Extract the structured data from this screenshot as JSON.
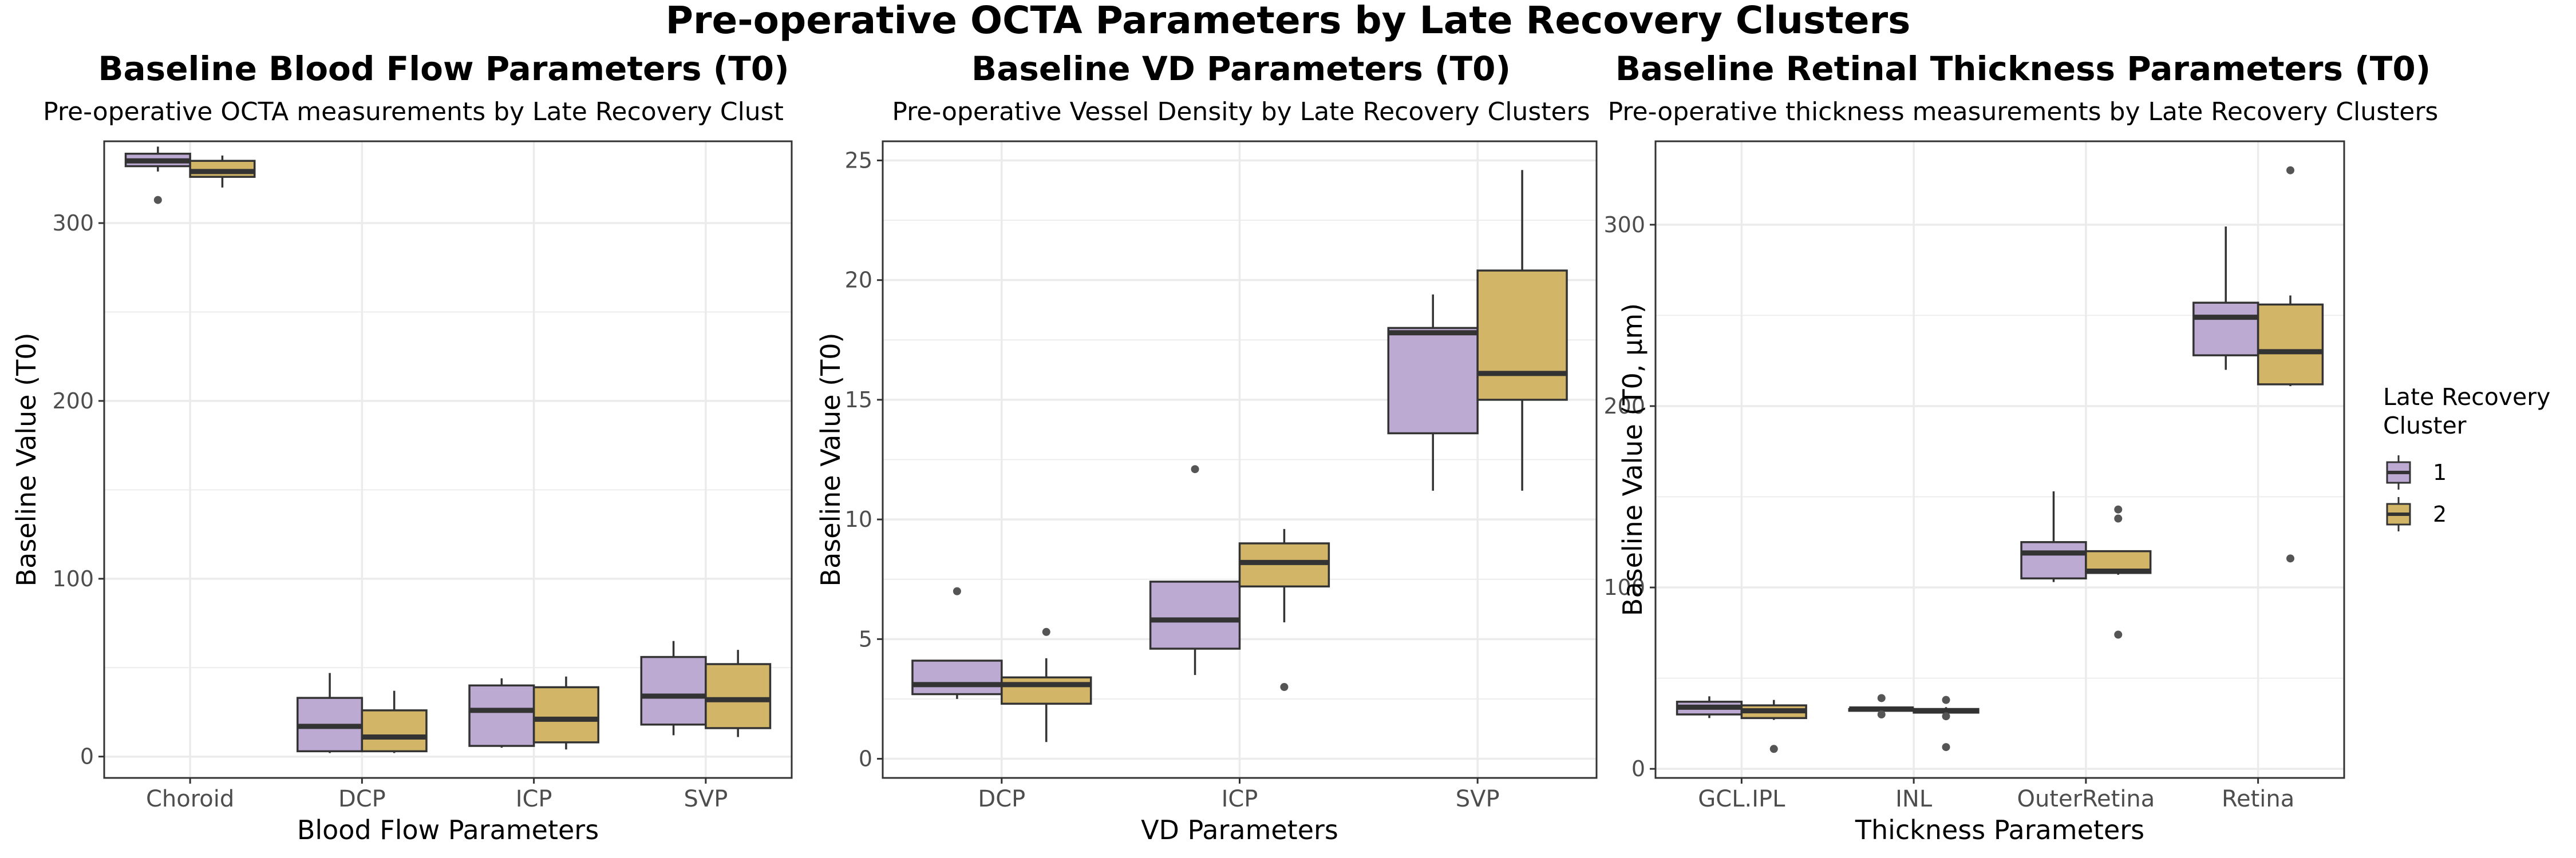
{
  "figure_title": "Pre-operative OCTA Parameters by Late Recovery Clusters",
  "legend": {
    "title_line1": "Late Recovery",
    "title_line2": "Cluster",
    "items": [
      {
        "label": "1",
        "color": "#bcaad3"
      },
      {
        "label": "2",
        "color": "#d2b566"
      }
    ]
  },
  "colors": {
    "cluster1": "#bcaad3",
    "cluster2": "#d2b566",
    "box_line": "#333333",
    "grid": "#ebebeb",
    "panel_border": "#333333"
  },
  "chart_data": [
    {
      "type": "boxplot",
      "title": "Baseline Blood Flow Parameters (T0)",
      "subtitle": "Pre-operative OCTA measurements by Late Recovery Clust",
      "xlabel": "Blood Flow Parameters",
      "ylabel": "Baseline Value (T0)",
      "ylim": [
        -12,
        346
      ],
      "yticks": [
        0,
        100,
        200,
        300
      ],
      "categories": [
        "Choroid",
        "DCP",
        "ICP",
        "SVP"
      ],
      "series": [
        {
          "name": "1",
          "boxes": [
            {
              "min": 329,
              "q1": 332,
              "median": 335,
              "q3": 339,
              "max": 343,
              "outliers": [
                313
              ]
            },
            {
              "min": 2,
              "q1": 3,
              "median": 17,
              "q3": 33,
              "max": 47,
              "outliers": []
            },
            {
              "min": 5,
              "q1": 6,
              "median": 26,
              "q3": 40,
              "max": 44,
              "outliers": []
            },
            {
              "min": 12,
              "q1": 18,
              "median": 34,
              "q3": 56,
              "max": 65,
              "outliers": []
            }
          ]
        },
        {
          "name": "2",
          "boxes": [
            {
              "min": 320,
              "q1": 326,
              "median": 329,
              "q3": 335,
              "max": 338,
              "outliers": []
            },
            {
              "min": 2,
              "q1": 3,
              "median": 11,
              "q3": 26,
              "max": 37,
              "outliers": []
            },
            {
              "min": 4,
              "q1": 8,
              "median": 21,
              "q3": 39,
              "max": 45,
              "outliers": []
            },
            {
              "min": 11,
              "q1": 16,
              "median": 32,
              "q3": 52,
              "max": 60,
              "outliers": []
            }
          ]
        }
      ]
    },
    {
      "type": "boxplot",
      "title": "Baseline VD Parameters (T0)",
      "subtitle": "Pre-operative Vessel Density by Late Recovery Clusters",
      "xlabel": "VD Parameters",
      "ylabel": "Baseline Value (T0)",
      "ylim": [
        -0.8,
        25.8
      ],
      "yticks": [
        0,
        5,
        10,
        15,
        20,
        25
      ],
      "categories": [
        "DCP",
        "ICP",
        "SVP"
      ],
      "series": [
        {
          "name": "1",
          "boxes": [
            {
              "min": 2.5,
              "q1": 2.7,
              "median": 3.1,
              "q3": 4.1,
              "max": 4.1,
              "outliers": [
                7.0
              ]
            },
            {
              "min": 3.5,
              "q1": 4.6,
              "median": 5.8,
              "q3": 7.4,
              "max": 7.4,
              "outliers": [
                12.1
              ]
            },
            {
              "min": 11.2,
              "q1": 13.6,
              "median": 17.8,
              "q3": 18.0,
              "max": 19.4,
              "outliers": []
            }
          ]
        },
        {
          "name": "2",
          "boxes": [
            {
              "min": 0.7,
              "q1": 2.3,
              "median": 3.1,
              "q3": 3.4,
              "max": 4.2,
              "outliers": [
                5.3
              ]
            },
            {
              "min": 5.7,
              "q1": 7.2,
              "median": 8.2,
              "q3": 9.0,
              "max": 9.6,
              "outliers": [
                3.0
              ]
            },
            {
              "min": 11.2,
              "q1": 15.0,
              "median": 16.1,
              "q3": 20.4,
              "max": 24.6,
              "outliers": []
            }
          ]
        }
      ]
    },
    {
      "type": "boxplot",
      "title": "Baseline Retinal Thickness Parameters (T0)",
      "subtitle": "Pre-operative thickness measurements by Late Recovery Clusters",
      "xlabel": "Thickness Parameters",
      "ylabel": "Baseline Value (T0, µm)",
      "ylim": [
        -5,
        346
      ],
      "yticks": [
        0,
        100,
        200,
        300
      ],
      "categories": [
        "GCL.IPL",
        "INL",
        "OuterRetina",
        "Retina"
      ],
      "series": [
        {
          "name": "1",
          "boxes": [
            {
              "min": 28,
              "q1": 30,
              "median": 34,
              "q3": 37,
              "max": 40,
              "outliers": []
            },
            {
              "min": 32,
              "q1": 32,
              "median": 33,
              "q3": 33,
              "max": 34,
              "outliers": [
                39,
                30
              ]
            },
            {
              "min": 103,
              "q1": 105,
              "median": 119,
              "q3": 125,
              "max": 153,
              "outliers": []
            },
            {
              "min": 220,
              "q1": 228,
              "median": 249,
              "q3": 257,
              "max": 299,
              "outliers": []
            }
          ]
        },
        {
          "name": "2",
          "boxes": [
            {
              "min": 27,
              "q1": 28,
              "median": 32,
              "q3": 35,
              "max": 38,
              "outliers": [
                11
              ]
            },
            {
              "min": 30,
              "q1": 31,
              "median": 32,
              "q3": 33,
              "max": 34,
              "outliers": [
                38,
                29,
                12
              ]
            },
            {
              "min": 107,
              "q1": 108,
              "median": 109,
              "q3": 120,
              "max": 120,
              "outliers": [
                143,
                138,
                74
              ]
            },
            {
              "min": 211,
              "q1": 212,
              "median": 230,
              "q3": 256,
              "max": 261,
              "outliers": [
                330,
                116
              ]
            }
          ]
        }
      ]
    }
  ]
}
